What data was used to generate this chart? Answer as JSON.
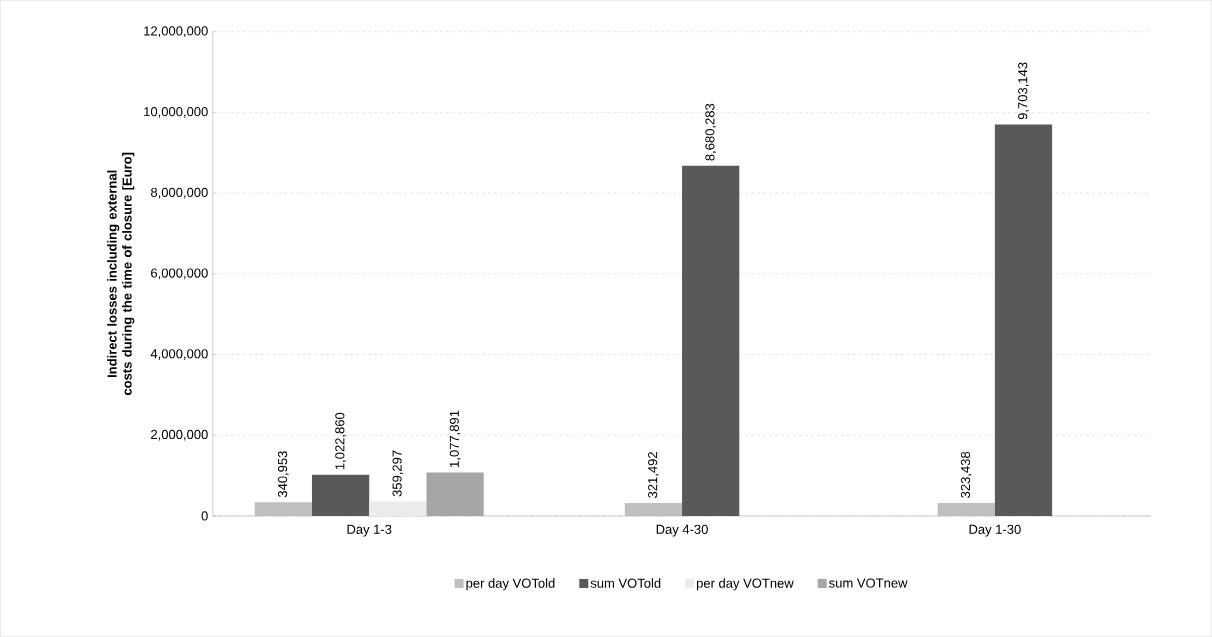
{
  "chart_data": {
    "type": "bar",
    "ylabel": "Indirect losses including external costs  during the time of closure  [Euro]",
    "categories": [
      "Day 1-3",
      "Day 4-30",
      "Day 1-30"
    ],
    "series": [
      {
        "name": "per day VOTold",
        "color": "#bfbfbf",
        "values": [
          340953,
          321492,
          323438
        ],
        "value_labels": [
          "340,953",
          "321,492",
          "323,438"
        ]
      },
      {
        "name": "sum VOTold",
        "color": "#595959",
        "values": [
          1022860,
          8680283,
          9703143
        ],
        "value_labels": [
          "1,022,860",
          "8,680,283",
          "9,703,143"
        ]
      },
      {
        "name": "per day VOTnew",
        "color": "#ececec",
        "values": [
          359297,
          null,
          null
        ],
        "value_labels": [
          "359,297",
          null,
          null
        ]
      },
      {
        "name": "sum VOTnew",
        "color": "#a6a6a6",
        "values": [
          1077891,
          null,
          null
        ],
        "value_labels": [
          "1,077,891",
          null,
          null
        ]
      }
    ],
    "ylim": [
      0,
      12000000
    ],
    "yticks": [
      0,
      {
        "value": 2000000,
        "label": "2,000,000"
      },
      {
        "value": 4000000,
        "label": "4,000,000"
      },
      {
        "value": 6000000,
        "label": "6,000,000"
      },
      {
        "value": 8000000,
        "label": "8,000,000"
      },
      {
        "value": 10000000,
        "label": "10,000,000"
      },
      {
        "value": 12000000,
        "label": "12,000,000"
      }
    ],
    "grid": "y",
    "legend": "bottom"
  }
}
